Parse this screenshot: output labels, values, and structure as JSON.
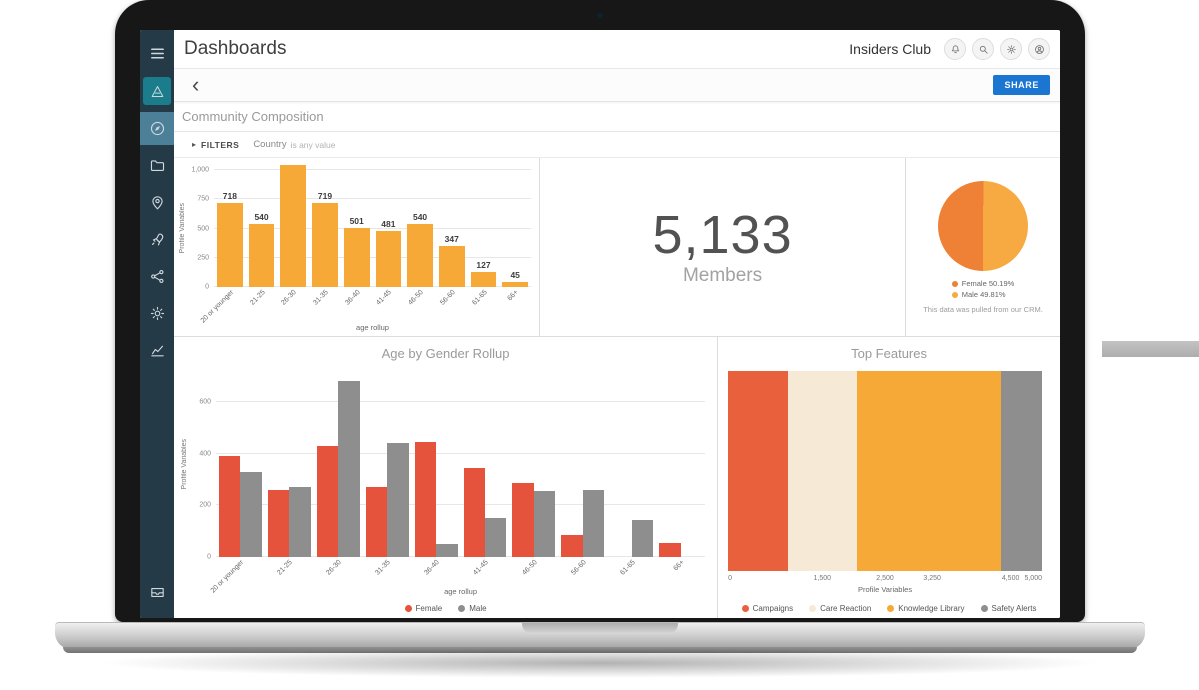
{
  "header": {
    "title": "Dashboards",
    "account": "Insiders Club"
  },
  "toolbar": {
    "share_label": "SHARE"
  },
  "icons": {
    "back": "‹",
    "filters_caret": "▸"
  },
  "page": {
    "title": "Community Composition"
  },
  "filters": {
    "label": "FILTERS",
    "field": "Country",
    "value": "is any value"
  },
  "sidebar": {
    "items": [
      {
        "name": "menu",
        "icon": "menu"
      },
      {
        "name": "logo",
        "icon": "logo",
        "style": "logo"
      },
      {
        "name": "dashboards",
        "icon": "compass",
        "active": true
      },
      {
        "name": "content",
        "icon": "folder"
      },
      {
        "name": "locations",
        "icon": "pin"
      },
      {
        "name": "campaigns",
        "icon": "rocket"
      },
      {
        "name": "community",
        "icon": "nodes"
      },
      {
        "name": "settings",
        "icon": "gear"
      },
      {
        "name": "analytics",
        "icon": "chart"
      },
      {
        "name": "library",
        "icon": "drawer",
        "style": "bottom"
      }
    ]
  },
  "main": {
    "stat": {
      "value": "5,133",
      "label": "Members"
    }
  },
  "chart_data": [
    {
      "id": "age-distribution",
      "type": "bar",
      "title": "",
      "categories": [
        "20 or younger",
        "21-25",
        "26-30",
        "31-35",
        "36-40",
        "41-45",
        "46-50",
        "56-60",
        "61-65",
        "66+"
      ],
      "values": [
        718,
        540,
        1050,
        719,
        501,
        481,
        540,
        347,
        127,
        45
      ],
      "labels": [
        "718",
        "540",
        "",
        "719",
        "501",
        "481",
        "540",
        "347",
        "127",
        "45"
      ],
      "bar_color": "#f7a938",
      "xlabel": "age rollup",
      "ylabel": "Profile Variables",
      "ylim": [
        0,
        1000
      ],
      "yticks": [
        {
          "label": "1,000",
          "value": 1000
        },
        {
          "label": "750",
          "value": 750
        },
        {
          "label": "500",
          "value": 500
        },
        {
          "label": "250",
          "value": 250
        },
        {
          "label": "0",
          "value": 0
        }
      ]
    },
    {
      "id": "gender-split",
      "type": "pie",
      "values": [
        50.19,
        49.81
      ],
      "labels": [
        "Female 50.19%",
        "Male 49.81%"
      ],
      "colors": [
        "#ee8136",
        "#f7aa42"
      ],
      "note": "This data was pulled from our CRM."
    },
    {
      "id": "age-by-gender",
      "type": "bar",
      "title": "Age by Gender Rollup",
      "categories": [
        "20 or younger",
        "21-25",
        "26-30",
        "31-35",
        "36-40",
        "41-45",
        "46-50",
        "56-60",
        "61-65",
        "66+"
      ],
      "series": [
        {
          "name": "Female",
          "color": "#e6533c",
          "values": [
            390,
            260,
            430,
            270,
            445,
            345,
            285,
            85,
            0,
            55
          ]
        },
        {
          "name": "Male",
          "color": "#8e8e8e",
          "values": [
            330,
            270,
            680,
            440,
            50,
            150,
            255,
            260,
            145,
            0
          ]
        }
      ],
      "xlabel": "age rollup",
      "ylabel": "Profile Variables",
      "ylim": [
        0,
        720
      ],
      "yticks": [
        {
          "label": "600",
          "value": 600
        },
        {
          "label": "400",
          "value": 400
        },
        {
          "label": "200",
          "value": 200
        },
        {
          "label": "0",
          "value": 0
        }
      ],
      "legend_position": "bottom"
    },
    {
      "id": "top-features",
      "type": "stacked-bar-horizontal",
      "title": "Top Features",
      "segments": [
        {
          "name": "Campaigns",
          "color": "#e8613c",
          "value": 950
        },
        {
          "name": "Care Reaction",
          "color": "#f6ead6",
          "value": 1100
        },
        {
          "name": "Knowledge Library",
          "color": "#f7a938",
          "value": 2300
        },
        {
          "name": "Safety Alerts",
          "color": "#8e8e8e",
          "value": 650
        }
      ],
      "xlabel": "Profile Variables",
      "xlim": [
        0,
        5000
      ],
      "xticks": [
        {
          "label": "0",
          "value": 0
        },
        {
          "label": "1,500",
          "value": 1500
        },
        {
          "label": "2,500",
          "value": 2500
        },
        {
          "label": "3,250",
          "value": 3250
        },
        {
          "label": "4,500",
          "value": 4500
        },
        {
          "label": "5,000",
          "value": 5000
        }
      ],
      "legend_position": "bottom"
    }
  ]
}
